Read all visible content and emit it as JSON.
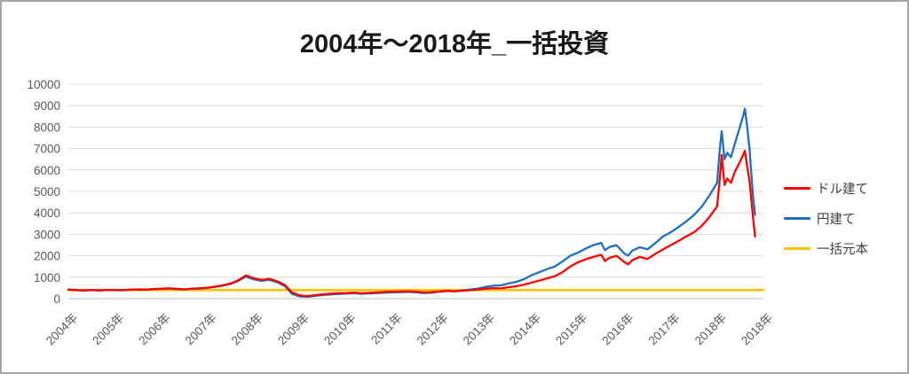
{
  "window": {
    "background": "#ffffff",
    "border_color": "#a6a6a6"
  },
  "colors": {
    "gridline": "#d9d9d9",
    "axis_line": "#bfbfbf",
    "tick_text": "#595959",
    "title_text": "#1a1a1a",
    "legend_text": "#404040"
  },
  "chart_data": {
    "type": "line",
    "title": "2004年〜2018年_一括投資",
    "xlabel": "",
    "ylabel": "",
    "ylim": [
      0,
      10000
    ],
    "xlim": [
      2004,
      2019
    ],
    "grid": true,
    "legend_position": "right",
    "y_ticks": [
      0,
      1000,
      2000,
      3000,
      4000,
      5000,
      6000,
      7000,
      8000,
      9000,
      10000
    ],
    "x_tick_labels": [
      "2004年",
      "2005年",
      "2006年",
      "2007年",
      "2008年",
      "2009年",
      "2010年",
      "2011年",
      "2012年",
      "2013年",
      "2014年",
      "2015年",
      "2016年",
      "2017年",
      "2018年",
      "2018年"
    ],
    "principal_value": 400,
    "series": [
      {
        "name": "ドル建て",
        "color": "#ff0000",
        "x": [
          2004.0,
          2004.17,
          2004.33,
          2004.5,
          2004.67,
          2004.83,
          2005.0,
          2005.17,
          2005.33,
          2005.5,
          2005.67,
          2005.83,
          2006.0,
          2006.17,
          2006.33,
          2006.5,
          2006.67,
          2006.83,
          2007.0,
          2007.17,
          2007.33,
          2007.5,
          2007.67,
          2007.83,
          2008.0,
          2008.17,
          2008.33,
          2008.5,
          2008.67,
          2008.83,
          2009.0,
          2009.17,
          2009.33,
          2009.5,
          2009.67,
          2009.83,
          2010.0,
          2010.17,
          2010.33,
          2010.5,
          2010.67,
          2010.83,
          2011.0,
          2011.17,
          2011.33,
          2011.5,
          2011.67,
          2011.83,
          2012.0,
          2012.17,
          2012.33,
          2012.5,
          2012.67,
          2012.83,
          2013.0,
          2013.17,
          2013.33,
          2013.5,
          2013.67,
          2013.83,
          2014.0,
          2014.17,
          2014.33,
          2014.5,
          2014.67,
          2014.83,
          2015.0,
          2015.17,
          2015.33,
          2015.5,
          2015.58,
          2015.67,
          2015.83,
          2016.0,
          2016.08,
          2016.17,
          2016.33,
          2016.5,
          2016.67,
          2016.83,
          2017.0,
          2017.17,
          2017.33,
          2017.5,
          2017.67,
          2017.83,
          2018.0,
          2018.06,
          2018.1,
          2018.16,
          2018.22,
          2018.3,
          2018.38,
          2018.45,
          2018.52,
          2018.57,
          2018.6,
          2018.64,
          2018.7,
          2018.74,
          2018.78,
          2018.82
        ],
        "values": [
          420,
          400,
          385,
          405,
          390,
          415,
          410,
          398,
          420,
          432,
          424,
          446,
          462,
          482,
          458,
          440,
          468,
          482,
          512,
          560,
          625,
          705,
          860,
          1080,
          955,
          870,
          925,
          820,
          640,
          280,
          150,
          120,
          165,
          205,
          235,
          255,
          265,
          285,
          250,
          272,
          292,
          312,
          322,
          335,
          345,
          330,
          288,
          302,
          332,
          362,
          342,
          372,
          392,
          422,
          462,
          492,
          478,
          532,
          582,
          652,
          750,
          848,
          945,
          1050,
          1245,
          1495,
          1700,
          1845,
          1945,
          2045,
          1755,
          1900,
          1995,
          1705,
          1605,
          1795,
          1945,
          1850,
          2095,
          2295,
          2495,
          2695,
          2895,
          3095,
          3395,
          3795,
          4300,
          5600,
          6700,
          5300,
          5600,
          5400,
          5900,
          6200,
          6500,
          6750,
          6900,
          6300,
          5500,
          4600,
          3700,
          2900
        ]
      },
      {
        "name": "円建て",
        "color": "#1e6fc0",
        "x": [
          2004.0,
          2004.17,
          2004.33,
          2004.5,
          2004.67,
          2004.83,
          2005.0,
          2005.17,
          2005.33,
          2005.5,
          2005.67,
          2005.83,
          2006.0,
          2006.17,
          2006.33,
          2006.5,
          2006.67,
          2006.83,
          2007.0,
          2007.17,
          2007.33,
          2007.5,
          2007.67,
          2007.83,
          2008.0,
          2008.17,
          2008.33,
          2008.5,
          2008.67,
          2008.83,
          2009.0,
          2009.17,
          2009.33,
          2009.5,
          2009.67,
          2009.83,
          2010.0,
          2010.17,
          2010.33,
          2010.5,
          2010.67,
          2010.83,
          2011.0,
          2011.17,
          2011.33,
          2011.5,
          2011.67,
          2011.83,
          2012.0,
          2012.17,
          2012.33,
          2012.5,
          2012.67,
          2012.83,
          2013.0,
          2013.17,
          2013.33,
          2013.5,
          2013.67,
          2013.83,
          2014.0,
          2014.17,
          2014.33,
          2014.5,
          2014.67,
          2014.83,
          2015.0,
          2015.17,
          2015.33,
          2015.5,
          2015.58,
          2015.67,
          2015.83,
          2016.0,
          2016.08,
          2016.17,
          2016.33,
          2016.5,
          2016.67,
          2016.83,
          2017.0,
          2017.17,
          2017.33,
          2017.5,
          2017.67,
          2017.83,
          2018.0,
          2018.06,
          2018.1,
          2018.16,
          2018.22,
          2018.3,
          2018.38,
          2018.45,
          2018.52,
          2018.57,
          2018.6,
          2018.64,
          2018.7,
          2018.74,
          2018.78,
          2018.82
        ],
        "values": [
          425,
          405,
          375,
          395,
          380,
          405,
          398,
          388,
          412,
          424,
          416,
          440,
          455,
          472,
          448,
          430,
          458,
          472,
          500,
          548,
          605,
          685,
          830,
          1030,
          905,
          830,
          880,
          770,
          590,
          220,
          105,
          85,
          130,
          170,
          200,
          220,
          240,
          255,
          228,
          242,
          262,
          282,
          292,
          302,
          312,
          298,
          262,
          278,
          322,
          358,
          348,
          388,
          424,
          472,
          545,
          605,
          620,
          705,
          785,
          905,
          1100,
          1245,
          1375,
          1500,
          1745,
          1995,
          2150,
          2345,
          2495,
          2600,
          2255,
          2400,
          2495,
          2105,
          2005,
          2245,
          2395,
          2300,
          2595,
          2895,
          3095,
          3345,
          3595,
          3895,
          4295,
          4795,
          5400,
          7000,
          7800,
          6500,
          6800,
          6600,
          7200,
          7700,
          8200,
          8600,
          8850,
          8200,
          7000,
          5800,
          4700,
          3900
        ]
      },
      {
        "name": "一括元本",
        "color": "#ffc000",
        "x": [
          2004.0,
          2019.0
        ],
        "values": [
          400,
          400
        ]
      }
    ]
  }
}
